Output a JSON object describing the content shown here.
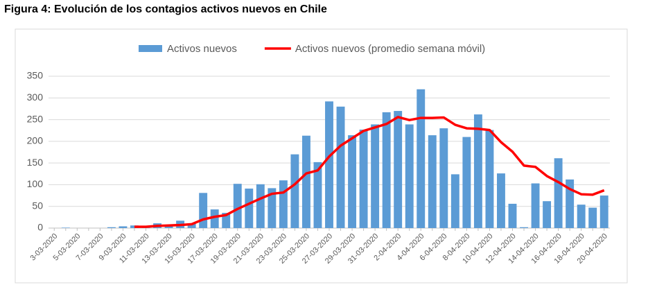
{
  "chart_data": {
    "type": "bar",
    "title": "Figura 4: Evolución de los contagios activos nuevos en Chile",
    "categories": [
      "3-03-2020",
      null,
      "5-03-2020",
      null,
      "7-03-2020",
      null,
      "9-03-2020",
      null,
      "11-03-2020",
      null,
      "13-03-2020",
      null,
      "15-03-2020",
      null,
      "17-03-2020",
      null,
      "19-03-2020",
      null,
      "21-03-2020",
      null,
      "23-03-2020",
      null,
      "25-03-2020",
      null,
      "27-03-2020",
      null,
      "29-03-2020",
      null,
      "31-03-2020",
      null,
      "2-04-2020",
      null,
      "4-04-2020",
      null,
      "6-04-2020",
      null,
      "8-04-2020",
      null,
      "10-04-2020",
      null,
      "12-04-2020",
      null,
      "14-04-2020",
      null,
      "16-04-2020",
      null,
      "18-04-2020",
      null,
      "20-04-2020"
    ],
    "series": [
      {
        "name": "Activos nuevos",
        "type": "bar",
        "color": "#5b9bd5",
        "values": [
          0,
          1,
          0,
          0,
          0,
          2,
          4,
          6,
          3,
          11,
          8,
          17,
          10,
          81,
          43,
          35,
          102,
          91,
          101,
          92,
          110,
          170,
          213,
          152,
          292,
          280,
          214,
          227,
          239,
          267,
          270,
          239,
          320,
          214,
          230,
          124,
          210,
          262,
          226,
          126,
          56,
          2,
          103,
          62,
          161,
          112,
          54,
          47,
          75
        ]
      },
      {
        "name": "Activos nuevos (promedio semana móvil)",
        "type": "line",
        "color": "#ff0000",
        "values": [
          null,
          null,
          null,
          null,
          null,
          null,
          null,
          3,
          3,
          5,
          6,
          7,
          9,
          20,
          26,
          30,
          44,
          56,
          68,
          79,
          82,
          101,
          126,
          133,
          165,
          190,
          207,
          224,
          232,
          240,
          256,
          249,
          254,
          254,
          255,
          238,
          230,
          229,
          226,
          198,
          176,
          144,
          141,
          120,
          106,
          90,
          78,
          77,
          87
        ]
      }
    ],
    "ylim": [
      0,
      350
    ],
    "yticks": [
      0,
      50,
      100,
      150,
      200,
      250,
      300,
      350
    ],
    "grid": true,
    "legend": "top"
  }
}
